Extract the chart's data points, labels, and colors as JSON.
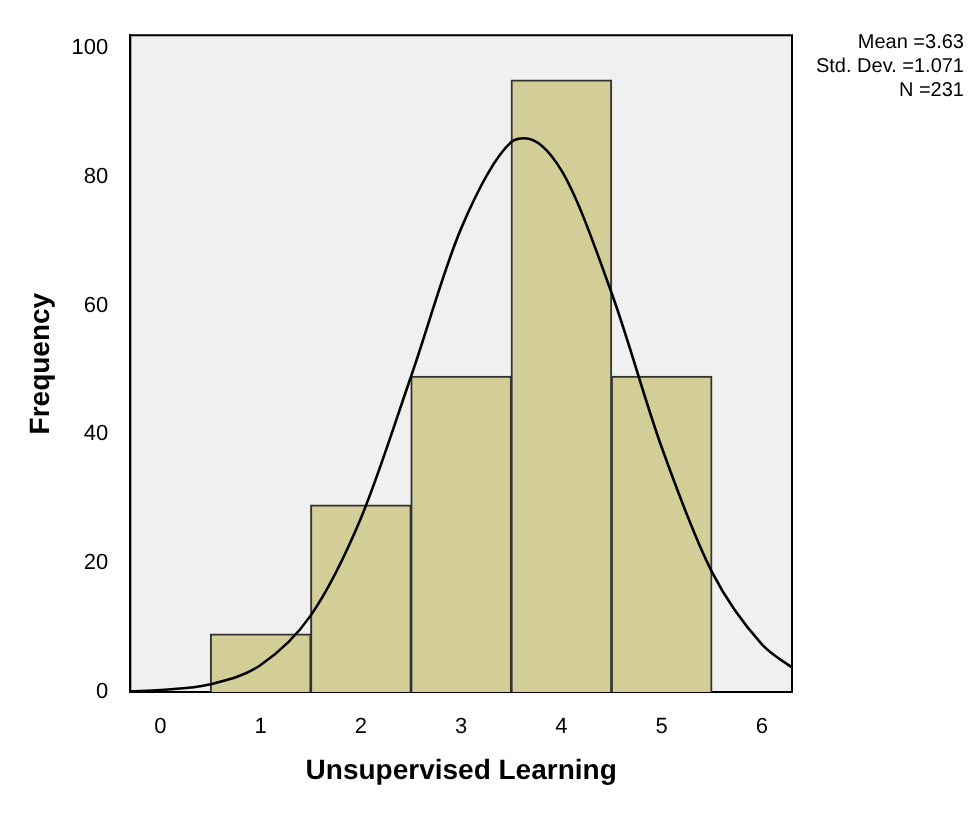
{
  "chart_data": {
    "type": "histogram",
    "xlabel": "Unsupervised Learning",
    "ylabel": "Frequency",
    "bins": [
      0.5,
      1.5,
      2.5,
      3.5,
      4.5,
      5.5
    ],
    "values": [
      9,
      29,
      49,
      95,
      49
    ],
    "color": "#d3ce97",
    "series": [
      {
        "type": "line",
        "color": "#000000",
        "x": [
          -0.3,
          0,
          0.5,
          1,
          1.5,
          2,
          2.5,
          3,
          3.5,
          3.63,
          4,
          4.5,
          5,
          5.5,
          6,
          6.3
        ],
        "values": [
          0.1,
          0.3,
          1.2,
          4.2,
          11.9,
          27,
          49,
          72,
          85.4,
          86,
          81,
          62,
          38,
          18.7,
          7.4,
          3.8
        ]
      }
    ],
    "xlim": [
      -0.3,
      6.3
    ],
    "xticks": [
      0,
      1,
      2,
      3,
      4,
      5,
      6
    ],
    "ylim": [
      0,
      102
    ],
    "yticks": [
      0,
      20,
      40,
      60,
      80,
      100
    ],
    "grid": false,
    "legend": false,
    "marker": "none",
    "annotations": [
      "Mean =3.63",
      "Std. Dev. =1.071",
      "N =231"
    ]
  }
}
